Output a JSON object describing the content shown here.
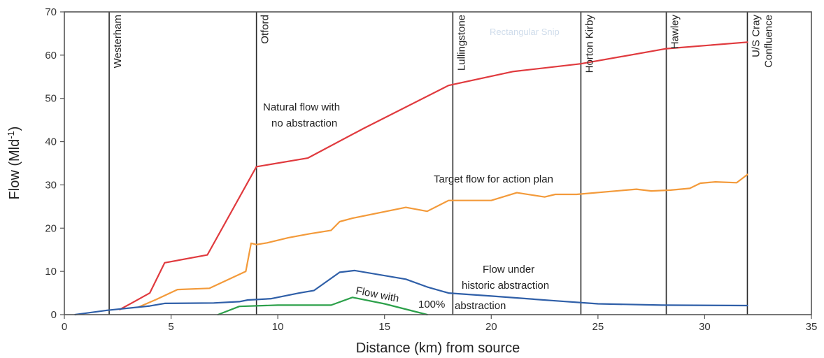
{
  "chart_data": {
    "type": "line",
    "xlabel": "Distance (km) from source",
    "ylabel": "Flow (Mld",
    "ylabel_sup": "-1",
    "ylabel_close": ")",
    "xlim": [
      0,
      35
    ],
    "ylim": [
      0,
      70
    ],
    "x_ticks": [
      0,
      5,
      10,
      15,
      20,
      25,
      30,
      35
    ],
    "y_ticks": [
      0,
      10,
      20,
      30,
      40,
      50,
      60,
      70
    ],
    "watermark": "Rectangular Snip",
    "locations": [
      {
        "name": "Westerham",
        "x": 2.1
      },
      {
        "name": "Otford",
        "x": 9.0
      },
      {
        "name": "Lullingstone",
        "x": 18.2
      },
      {
        "name": "Horton Kirby",
        "x": 24.2
      },
      {
        "name": "Hawley",
        "x": 28.2
      },
      {
        "name": "U/S Cray",
        "name2": "Confluence",
        "x": 32.0
      }
    ],
    "annotations": {
      "natural_1": "Natural flow with",
      "natural_2": "no abstraction",
      "target": "Target flow for action plan",
      "historic_1": "Flow under",
      "historic_2": "historic abstraction",
      "full_1": "Flow with",
      "full_2": "100%",
      "full_3": "abstraction"
    },
    "series": [
      {
        "color": "#e03a3e",
        "x": [
          2.6,
          3.2,
          4.0,
          4.7,
          6.7,
          9.0,
          11.4,
          14.0,
          18.0,
          21.0,
          24.2,
          28.2,
          32.0
        ],
        "y": [
          1.2,
          2.8,
          5.0,
          12.0,
          13.8,
          34.2,
          36.2,
          43.0,
          53.0,
          56.2,
          58.0,
          61.5,
          63.0
        ]
      },
      {
        "color": "#f39a3a",
        "x": [
          3.5,
          4.3,
          5.3,
          6.8,
          8.5,
          8.75,
          9.0,
          9.5,
          10.5,
          11.5,
          12.5,
          12.9,
          13.5,
          16.0,
          17.0,
          18.0,
          20.0,
          21.2,
          22.5,
          23.0,
          24.0,
          26.8,
          27.5,
          28.4,
          29.3,
          29.8,
          30.5,
          31.5,
          32.0
        ],
        "y": [
          1.8,
          3.5,
          5.8,
          6.1,
          10.0,
          16.5,
          16.2,
          16.6,
          17.8,
          18.7,
          19.5,
          21.5,
          22.3,
          24.8,
          23.9,
          26.4,
          26.4,
          28.2,
          27.2,
          27.8,
          27.8,
          29.0,
          28.6,
          28.8,
          29.2,
          30.4,
          30.7,
          30.5,
          32.4
        ]
      },
      {
        "color": "#2f5fa8",
        "x": [
          0.5,
          2.0,
          4.0,
          4.7,
          7.0,
          8.2,
          8.6,
          9.0,
          9.7,
          11.0,
          11.7,
          12.9,
          13.6,
          16.0,
          17.0,
          18.0,
          20.0,
          23.0,
          25.0,
          28.0,
          32.0
        ],
        "y": [
          0.0,
          1.0,
          2.0,
          2.6,
          2.7,
          3.0,
          3.4,
          3.5,
          3.7,
          5.0,
          5.6,
          9.8,
          10.2,
          8.2,
          6.4,
          5.0,
          4.3,
          3.2,
          2.5,
          2.2,
          2.1
        ]
      },
      {
        "color": "#2ca04a",
        "x": [
          7.2,
          8.2,
          10.0,
          12.5,
          13.5,
          15.0,
          17.0
        ],
        "y": [
          0.0,
          1.9,
          2.2,
          2.2,
          4.0,
          2.5,
          0.0
        ]
      }
    ]
  }
}
